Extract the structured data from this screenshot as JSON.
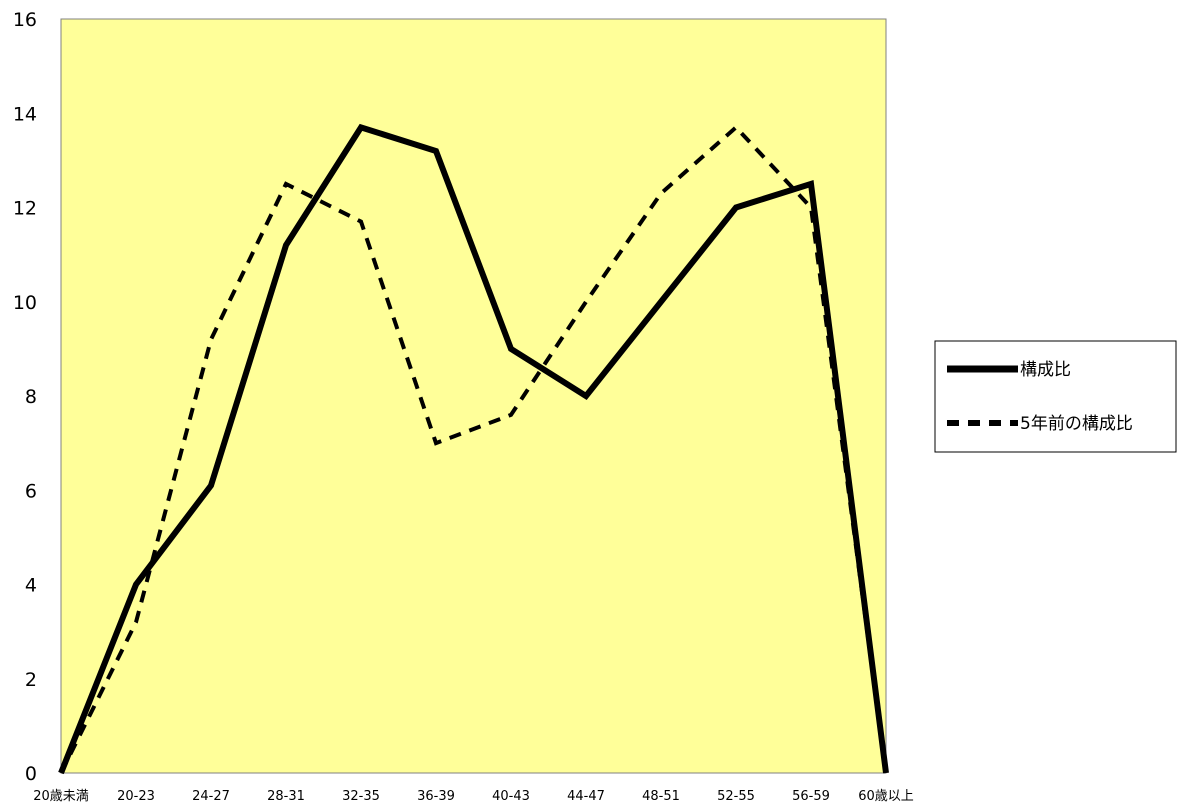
{
  "chart_data": {
    "type": "line",
    "title": "",
    "xlabel": "",
    "ylabel": "",
    "categories": [
      "20歳未満",
      "20-23",
      "24-27",
      "28-31",
      "32-35",
      "36-39",
      "40-43",
      "44-47",
      "48-51",
      "52-55",
      "56-59",
      "60歳以上"
    ],
    "ylim": [
      0,
      16
    ],
    "yticks": [
      0,
      2,
      4,
      6,
      8,
      10,
      12,
      14,
      16
    ],
    "grid": false,
    "legend_position": "right",
    "plot_background": "#ffff99",
    "series": [
      {
        "name": "構成比",
        "values": [
          0,
          4.0,
          6.1,
          11.2,
          13.7,
          13.2,
          9.0,
          8.0,
          10.0,
          12.0,
          12.5,
          0
        ],
        "color": "#000000",
        "style": "solid"
      },
      {
        "name": "5年前の構成比",
        "values": [
          0,
          3.2,
          9.2,
          12.5,
          11.7,
          7.0,
          7.6,
          10.0,
          12.3,
          13.7,
          12.0,
          0
        ],
        "color": "#000000",
        "style": "dashed"
      }
    ]
  }
}
